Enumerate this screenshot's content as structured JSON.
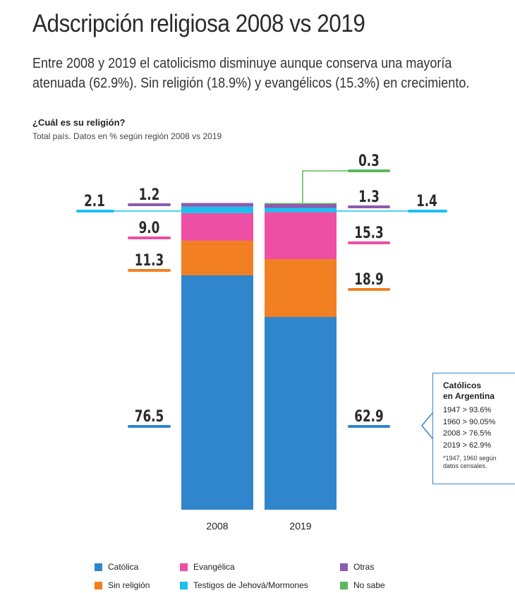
{
  "title": "Adscripción religiosa 2008 vs 2019",
  "subtitle": "Entre 2008 y 2019 el catolicismo disminuye aunque conserva una mayoría atenuada (62.9%). Sin religión (18.9%) y evangélicos (15.3%)  en crecimiento.",
  "question": "¿Cuál es su religión?",
  "question_sub": "Total país. Datos en % según región 2008 vs 2019",
  "chart_data": {
    "type": "bar",
    "stacked": true,
    "categories": [
      "2008",
      "2019"
    ],
    "series": [
      {
        "name": "Católica",
        "color": "#2f86cc",
        "values": [
          76.5,
          62.9
        ],
        "labels": [
          "76.5",
          "62.9"
        ]
      },
      {
        "name": "Sin religión",
        "color": "#f28023",
        "values": [
          11.3,
          18.9
        ],
        "labels": [
          "11.3",
          "18.9"
        ]
      },
      {
        "name": "Evangélica",
        "color": "#ec4fa3",
        "values": [
          9.0,
          15.3
        ],
        "labels": [
          "9.0",
          "15.3"
        ]
      },
      {
        "name": "Testigos de Jehová/Mormones",
        "color": "#1cc0ee",
        "values": [
          2.1,
          1.4
        ],
        "labels": [
          "2.1",
          "1.4"
        ]
      },
      {
        "name": "Otras",
        "color": "#8b5bb0",
        "values": [
          1.2,
          1.3
        ],
        "labels": [
          "1.2",
          "1.3"
        ]
      },
      {
        "name": "No sabe",
        "color": "#5cb85c",
        "values": [
          0,
          0.3
        ],
        "labels": [
          "",
          "0.3"
        ]
      }
    ],
    "ylim": [
      0,
      100
    ]
  },
  "legend": [
    {
      "label": "Católica",
      "color": "#2f86cc"
    },
    {
      "label": "Evangélica",
      "color": "#ec4fa3"
    },
    {
      "label": "Otras",
      "color": "#8b5bb0"
    },
    {
      "label": "Sin religión",
      "color": "#f28023"
    },
    {
      "label": "Testigos de Jehová/Mormones",
      "color": "#1cc0ee"
    },
    {
      "label": "No sabe",
      "color": "#5cb85c"
    }
  ],
  "note": {
    "title": "Católicos\nen Argentina",
    "lines": [
      "1947 > 93.6%",
      "1960 > 90.05%",
      "2008 > 76.5%",
      "2019 > 62.9%"
    ],
    "footnote": "*1947, 1960 según\ndatos censales."
  }
}
